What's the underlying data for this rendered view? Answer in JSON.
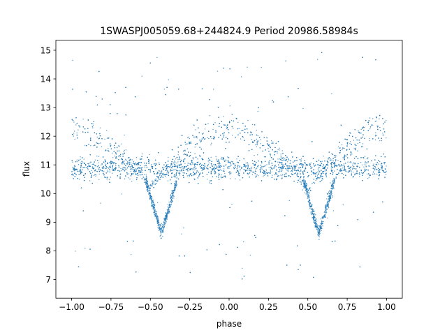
{
  "chart_data": {
    "type": "scatter",
    "title": "1SWASPJ005059.68+244824.9 Period 20986.58984s",
    "xlabel": "phase",
    "ylabel": "flux",
    "xlim": [
      -1.1,
      1.1
    ],
    "ylim": [
      6.35,
      15.35
    ],
    "xticks": [
      -1.0,
      -0.75,
      -0.5,
      -0.25,
      0.0,
      0.25,
      0.5,
      0.75,
      1.0
    ],
    "xtick_labels": [
      "−1.00",
      "−0.75",
      "−0.50",
      "−0.25",
      "0.00",
      "0.25",
      "0.50",
      "0.75",
      "1.00"
    ],
    "yticks": [
      7,
      8,
      9,
      10,
      11,
      12,
      13,
      14,
      15
    ],
    "ytick_labels": [
      "7",
      "8",
      "9",
      "10",
      "11",
      "12",
      "13",
      "14",
      "15"
    ],
    "grid": false,
    "legend": "none",
    "marker_color": "#1f77b4",
    "series": [
      {
        "x_range": [
          -1.0,
          1.0
        ],
        "features": {
          "baseline_flux": 10.9,
          "baseline_spread": 0.5,
          "upper_branch_peak_flux": 12.7,
          "upper_branch_peak_phases": [
            -1.0,
            0.0,
            1.0
          ],
          "upper_branch_min_phases": [
            -0.5,
            0.5
          ],
          "eclipse_min_phases": [
            -0.43,
            0.57
          ],
          "eclipse_min_flux": 8.6,
          "eclipse_halfwidth_phase": 0.1
        }
      }
    ]
  }
}
